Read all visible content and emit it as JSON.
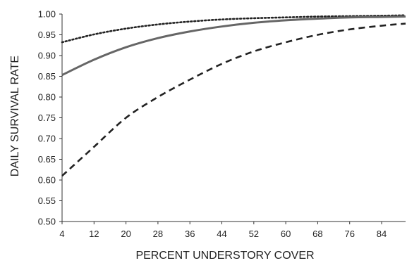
{
  "chart_data": {
    "type": "line",
    "title": "",
    "xlabel": "PERCENT UNDERSTORY COVER",
    "ylabel": "DAILY SURVIVAL RATE",
    "xlim": [
      4,
      90
    ],
    "ylim": [
      0.5,
      1.0
    ],
    "x_ticks": [
      4,
      12,
      20,
      28,
      36,
      44,
      52,
      60,
      68,
      76,
      84
    ],
    "x_tick_labels": [
      "4",
      "12",
      "20",
      "28",
      "36",
      "44",
      "52",
      "60",
      "68",
      "76",
      "84"
    ],
    "y_ticks": [
      0.5,
      0.55,
      0.6,
      0.65,
      0.7,
      0.75,
      0.8,
      0.85,
      0.9,
      0.95,
      1.0
    ],
    "y_tick_labels": [
      "0.50",
      "0.55",
      "0.60",
      "0.65",
      "0.70",
      "0.75",
      "0.80",
      "0.85",
      "0.90",
      "0.95",
      "1.00"
    ],
    "grid": false,
    "legend": "none",
    "series": [
      {
        "style": "dotted",
        "color": "#222222",
        "x": [
          4,
          12,
          20,
          28,
          36,
          44,
          52,
          60,
          68,
          76,
          84,
          90
        ],
        "y": [
          0.932,
          0.951,
          0.965,
          0.975,
          0.982,
          0.987,
          0.99,
          0.992,
          0.994,
          0.995,
          0.996,
          0.997
        ]
      },
      {
        "style": "solid",
        "color": "#666666",
        "x": [
          4,
          12,
          20,
          28,
          36,
          44,
          52,
          60,
          68,
          76,
          84,
          90
        ],
        "y": [
          0.853,
          0.89,
          0.92,
          0.942,
          0.958,
          0.97,
          0.979,
          0.985,
          0.989,
          0.992,
          0.993,
          0.994
        ]
      },
      {
        "style": "dashed",
        "color": "#222222",
        "x": [
          4,
          12,
          20,
          28,
          36,
          44,
          52,
          60,
          68,
          76,
          84,
          90
        ],
        "y": [
          0.61,
          0.68,
          0.75,
          0.8,
          0.842,
          0.88,
          0.91,
          0.932,
          0.95,
          0.963,
          0.972,
          0.977
        ]
      }
    ]
  }
}
